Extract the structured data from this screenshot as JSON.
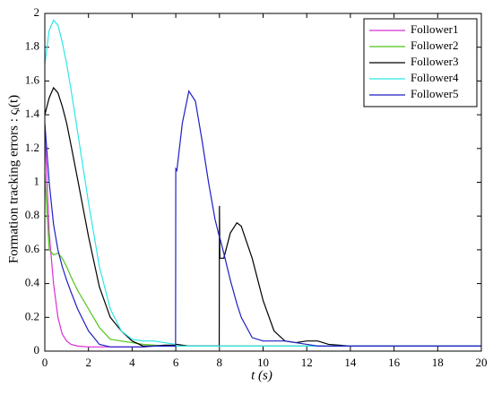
{
  "chart_data": {
    "type": "line",
    "xlabel": "t (s)",
    "ylabel": "Formation tracking errors : ςᵢ(t)",
    "x": [
      0,
      0.2,
      0.4,
      0.6,
      0.8,
      1,
      1.2,
      1.5,
      2,
      2.5,
      3,
      3.5,
      4,
      4.5,
      5,
      5.5,
      5.99,
      6,
      6.05,
      6.3,
      6.6,
      6.9,
      7.2,
      7.5,
      7.8,
      7.99,
      8,
      8.02,
      8.2,
      8.5,
      8.8,
      9,
      9.5,
      10,
      10.5,
      11,
      11.5,
      12,
      12.5,
      13,
      14,
      15,
      16,
      17,
      18,
      19,
      20
    ],
    "series": [
      {
        "name": "Follower1",
        "color": "#d62fd6",
        "values": [
          1.3,
          0.7,
          0.4,
          0.2,
          0.1,
          0.06,
          0.04,
          0.03,
          0.025,
          0.025,
          0.025,
          0.025,
          0.025,
          0.025,
          0.03,
          0.03,
          0.03,
          0.03,
          0.03,
          0.03,
          0.03,
          0.03,
          0.03,
          0.03,
          0.03,
          0.03,
          0.03,
          0.03,
          0.03,
          0.03,
          0.03,
          0.03,
          0.03,
          0.03,
          0.03,
          0.03,
          0.03,
          0.03,
          0.03,
          0.03,
          0.03,
          0.03,
          0.03,
          0.03,
          0.03,
          0.03,
          0.03
        ]
      },
      {
        "name": "Follower2",
        "color": "#4fc41a",
        "values": [
          1.05,
          0.6,
          0.57,
          0.58,
          0.55,
          0.5,
          0.44,
          0.36,
          0.25,
          0.14,
          0.07,
          0.06,
          0.05,
          0.04,
          0.035,
          0.03,
          0.03,
          0.03,
          0.03,
          0.03,
          0.03,
          0.03,
          0.03,
          0.03,
          0.03,
          0.03,
          0.03,
          0.03,
          0.03,
          0.03,
          0.03,
          0.03,
          0.03,
          0.03,
          0.03,
          0.03,
          0.03,
          0.03,
          0.03,
          0.03,
          0.03,
          0.03,
          0.03,
          0.03,
          0.03,
          0.03,
          0.03
        ]
      },
      {
        "name": "Follower3",
        "color": "#000000",
        "values": [
          1.4,
          1.5,
          1.56,
          1.53,
          1.45,
          1.35,
          1.22,
          1.02,
          0.68,
          0.38,
          0.2,
          0.12,
          0.06,
          0.03,
          0.03,
          0.035,
          0.035,
          0.04,
          0.04,
          0.035,
          0.03,
          0.03,
          0.03,
          0.03,
          0.03,
          0.03,
          0.86,
          0.55,
          0.55,
          0.7,
          0.76,
          0.74,
          0.55,
          0.3,
          0.12,
          0.06,
          0.05,
          0.06,
          0.06,
          0.04,
          0.03,
          0.03,
          0.03,
          0.03,
          0.03,
          0.03,
          0.03
        ]
      },
      {
        "name": "Follower4",
        "color": "#2ee6e6",
        "values": [
          1.7,
          1.9,
          1.96,
          1.93,
          1.83,
          1.7,
          1.55,
          1.3,
          0.88,
          0.5,
          0.25,
          0.12,
          0.07,
          0.06,
          0.06,
          0.05,
          0.04,
          0.03,
          0.03,
          0.03,
          0.03,
          0.03,
          0.03,
          0.03,
          0.03,
          0.03,
          0.03,
          0.03,
          0.03,
          0.03,
          0.03,
          0.03,
          0.03,
          0.03,
          0.03,
          0.03,
          0.03,
          0.03,
          0.03,
          0.03,
          0.03,
          0.03,
          0.03,
          0.03,
          0.03,
          0.03,
          0.03
        ]
      },
      {
        "name": "Follower5",
        "color": "#1f1fc4",
        "values": [
          1.35,
          1.0,
          0.75,
          0.6,
          0.5,
          0.42,
          0.35,
          0.25,
          0.12,
          0.04,
          0.025,
          0.025,
          0.025,
          0.025,
          0.03,
          0.03,
          0.03,
          1.08,
          1.07,
          1.35,
          1.54,
          1.48,
          1.25,
          1.0,
          0.78,
          0.68,
          0.68,
          0.67,
          0.58,
          0.42,
          0.28,
          0.2,
          0.08,
          0.06,
          0.06,
          0.06,
          0.05,
          0.04,
          0.03,
          0.03,
          0.03,
          0.03,
          0.03,
          0.03,
          0.03,
          0.03,
          0.03
        ]
      }
    ],
    "xlim": [
      0,
      20
    ],
    "xticks": [
      0,
      2,
      4,
      6,
      8,
      10,
      12,
      14,
      16,
      18,
      20
    ],
    "ylim": [
      0,
      2
    ],
    "yticks": [
      0,
      0.2,
      0.4,
      0.6,
      0.8,
      1,
      1.2,
      1.4,
      1.6,
      1.8,
      2
    ],
    "grid": false,
    "legend": "upper right"
  }
}
